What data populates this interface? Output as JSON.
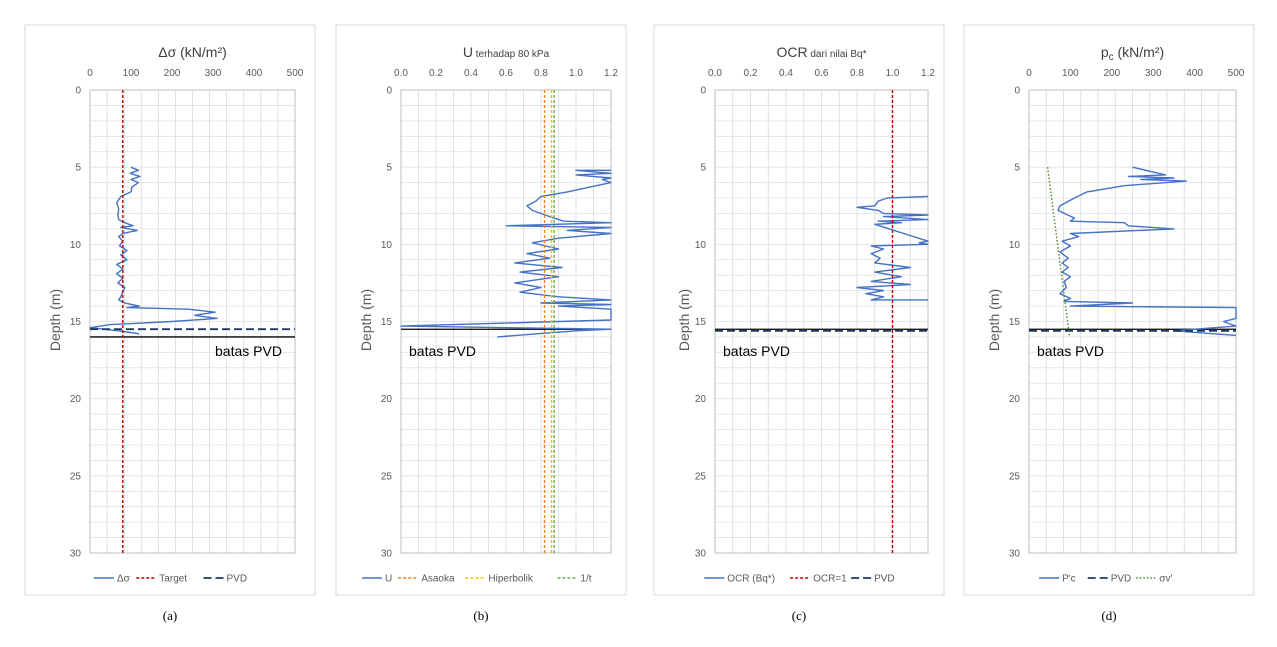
{
  "chart_data": [
    {
      "type": "line",
      "title": "Δσ (kN/m²)",
      "ylabel": "Depth (m)",
      "x_range": [
        0,
        500
      ],
      "x_ticks": [
        "0",
        "100",
        "200",
        "300",
        "400",
        "500"
      ],
      "y_range": [
        0,
        30
      ],
      "y_ticks": [
        "0",
        "5",
        "10",
        "15",
        "20",
        "25",
        "30"
      ],
      "y_inverted": true,
      "grid": true,
      "legend": "bottom",
      "annotation": "batas PVD",
      "caption": "(a)",
      "series": [
        {
          "name": "Δσ",
          "color": "#4472c4",
          "style": "solid",
          "x": [
            100,
            118,
            98,
            122,
            100,
            118,
            102,
            100,
            75,
            65,
            70,
            68,
            70,
            85,
            105,
            75,
            115,
            80,
            70,
            80,
            72,
            90,
            75,
            90,
            65,
            80,
            65,
            80,
            68,
            85,
            80,
            75,
            70,
            85,
            120,
            90,
            240,
            305,
            255,
            310,
            200,
            50,
            0,
            70,
            120
          ],
          "y": [
            5.0,
            5.2,
            5.4,
            5.6,
            5.8,
            6.0,
            6.3,
            6.6,
            6.9,
            7.3,
            7.7,
            8.1,
            8.4,
            8.6,
            8.8,
            8.9,
            9.1,
            9.3,
            9.5,
            9.8,
            10.1,
            10.4,
            10.7,
            11.0,
            11.3,
            11.6,
            11.9,
            12.2,
            12.5,
            12.8,
            13.1,
            13.4,
            13.6,
            13.8,
            14.0,
            14.1,
            14.2,
            14.4,
            14.6,
            14.8,
            15.0,
            15.2,
            15.4,
            15.6,
            15.8
          ]
        },
        {
          "name": "Target",
          "color": "#c00000",
          "style": "dashed",
          "x": [
            80,
            80
          ],
          "y": [
            0,
            30
          ]
        },
        {
          "name": "PVD",
          "color": "#1f3864",
          "style": "longdash",
          "x": [
            0,
            500
          ],
          "y": [
            15.5,
            15.5
          ]
        }
      ],
      "reference_line": {
        "x": [
          0,
          500
        ],
        "y": [
          16.0,
          16.0
        ],
        "color": "#000000"
      }
    },
    {
      "type": "line",
      "title": "U",
      "title_suffix": "terhadap 80 kPa",
      "ylabel": "Depth (m)",
      "x_range": [
        0,
        1.2
      ],
      "x_ticks": [
        "0.0",
        "0.2",
        "0.4",
        "0.6",
        "0.8",
        "1.0",
        "1.2"
      ],
      "y_range": [
        0,
        30
      ],
      "y_ticks": [
        "0",
        "5",
        "10",
        "15",
        "20",
        "25",
        "30"
      ],
      "y_inverted": true,
      "grid": true,
      "legend": "bottom",
      "annotation": "batas PVD",
      "caption": "(b)",
      "series": [
        {
          "name": "U",
          "color": "#4472c4",
          "style": "solid",
          "x": [
            1.2,
            1.0,
            1.2,
            1.0,
            1.2,
            1.15,
            1.2,
            0.95,
            0.8,
            0.77,
            0.72,
            0.75,
            0.85,
            0.93,
            1.2,
            0.6,
            1.2,
            0.95,
            1.2,
            0.9,
            0.75,
            0.9,
            0.72,
            0.85,
            0.65,
            0.92,
            0.68,
            0.9,
            0.65,
            0.8,
            0.68,
            0.9,
            1.2,
            0.8,
            1.2,
            0.9,
            1.2,
            1.2,
            0,
            1.2,
            1.0,
            0.55
          ],
          "y": [
            5.2,
            5.2,
            5.4,
            5.5,
            5.7,
            5.8,
            6.0,
            6.6,
            6.9,
            7.2,
            7.5,
            7.8,
            8.2,
            8.5,
            8.6,
            8.8,
            8.9,
            9.1,
            9.3,
            9.6,
            9.9,
            10.3,
            10.6,
            10.9,
            11.2,
            11.5,
            11.8,
            12.1,
            12.5,
            12.8,
            13.1,
            13.4,
            13.6,
            13.8,
            13.9,
            14.0,
            14.2,
            14.9,
            15.3,
            15.5,
            15.6,
            16.0
          ]
        },
        {
          "name": "Asaoka",
          "color": "#ed7d31",
          "style": "dashed",
          "x": [
            0.82,
            0.82
          ],
          "y": [
            0,
            30
          ]
        },
        {
          "name": "Hiperbolik",
          "color": "#ffc000",
          "style": "dashed",
          "x": [
            0.86,
            0.86
          ],
          "y": [
            0,
            30
          ]
        },
        {
          "name": "1/t",
          "color": "#70ad47",
          "style": "dashed",
          "x": [
            0.875,
            0.875
          ],
          "y": [
            0,
            30
          ]
        }
      ],
      "reference_line": {
        "x": [
          0,
          1.2
        ],
        "y": [
          15.5,
          15.5
        ],
        "color": "#000000"
      }
    },
    {
      "type": "line",
      "title": "OCR",
      "title_suffix": "dari nilai Bq*",
      "ylabel": "Depth (m)",
      "x_range": [
        0,
        1.2
      ],
      "x_ticks": [
        "0.0",
        "0.2",
        "0.4",
        "0.6",
        "0.8",
        "1.0",
        "1.2"
      ],
      "y_range": [
        0,
        30
      ],
      "y_ticks": [
        "0",
        "5",
        "10",
        "15",
        "20",
        "25",
        "30"
      ],
      "y_inverted": true,
      "grid": true,
      "legend": "bottom",
      "annotation": "batas PVD",
      "caption": "(c)",
      "series": [
        {
          "name": "OCR (Bq*)",
          "color": "#4472c4",
          "style": "solid",
          "x": [
            1.2,
            0.97,
            0.92,
            0.9,
            0.8,
            0.92,
            0.95,
            1.2,
            0.95,
            1.2,
            0.92,
            1.05,
            0.9,
            1.2,
            1.15,
            1.2,
            0.88,
            0.95,
            0.88,
            0.93,
            0.9,
            1.1,
            0.9,
            1.05,
            0.88,
            1.1,
            0.8,
            0.95,
            0.85,
            0.95,
            0.88,
            1.2
          ],
          "y": [
            6.9,
            7.0,
            7.2,
            7.5,
            7.6,
            7.8,
            8.0,
            8.1,
            8.2,
            8.4,
            8.5,
            8.6,
            8.7,
            9.8,
            9.9,
            10.0,
            10.1,
            10.3,
            10.6,
            10.9,
            11.2,
            11.5,
            11.8,
            12.1,
            12.4,
            12.6,
            12.8,
            13.0,
            13.2,
            13.4,
            13.6,
            13.6
          ]
        },
        {
          "name": "OCR=1",
          "color": "#c00000",
          "style": "dashed",
          "x": [
            1.0,
            1.0
          ],
          "y": [
            0,
            30
          ]
        },
        {
          "name": "PVD",
          "color": "#1f3864",
          "style": "longdash",
          "x": [
            0,
            1.2
          ],
          "y": [
            15.6,
            15.6
          ]
        }
      ],
      "reference_line": {
        "x": [
          0,
          1.2
        ],
        "y": [
          15.5,
          15.5
        ],
        "color": "#000000"
      }
    },
    {
      "type": "line",
      "title": "p",
      "title_sub": "c",
      "title_suffix": "(kN/m²)",
      "ylabel": "Depth (m)",
      "x_range": [
        0,
        500
      ],
      "x_ticks": [
        "0",
        "100",
        "200",
        "300",
        "400",
        "500"
      ],
      "y_range": [
        0,
        30
      ],
      "y_ticks": [
        "0",
        "5",
        "10",
        "15",
        "20",
        "25",
        "30"
      ],
      "y_inverted": true,
      "grid": true,
      "legend": "bottom",
      "annotation": "batas PVD",
      "caption": "(d)",
      "series": [
        {
          "name": "P'c",
          "color": "#4472c4",
          "style": "solid",
          "x": [
            250,
            330,
            240,
            350,
            270,
            380,
            230,
            140,
            110,
            75,
            70,
            110,
            100,
            230,
            240,
            350,
            100,
            120,
            80,
            100,
            75,
            95,
            80,
            95,
            80,
            100,
            85,
            90,
            75,
            100,
            85,
            250,
            100,
            500,
            500,
            470,
            500,
            350,
            500
          ],
          "y": [
            5.0,
            5.5,
            5.6,
            5.7,
            5.8,
            5.9,
            6.2,
            6.6,
            7.0,
            7.5,
            7.8,
            8.3,
            8.5,
            8.6,
            8.8,
            9.0,
            9.3,
            9.5,
            9.8,
            10.1,
            10.5,
            10.9,
            11.2,
            11.5,
            11.8,
            12.1,
            12.4,
            12.8,
            13.2,
            13.5,
            13.7,
            13.8,
            14.0,
            14.1,
            14.8,
            15.0,
            15.3,
            15.6,
            15.9
          ]
        },
        {
          "name": "PVD",
          "color": "#1f3864",
          "style": "longdash",
          "x": [
            0,
            500
          ],
          "y": [
            15.6,
            15.6
          ]
        },
        {
          "name": "σv'",
          "color": "#548235",
          "style": "dotted",
          "x": [
            45,
            98
          ],
          "y": [
            5.0,
            16.0
          ]
        }
      ],
      "reference_line": {
        "x": [
          0,
          500
        ],
        "y": [
          15.5,
          15.5
        ],
        "color": "#000000"
      }
    }
  ]
}
